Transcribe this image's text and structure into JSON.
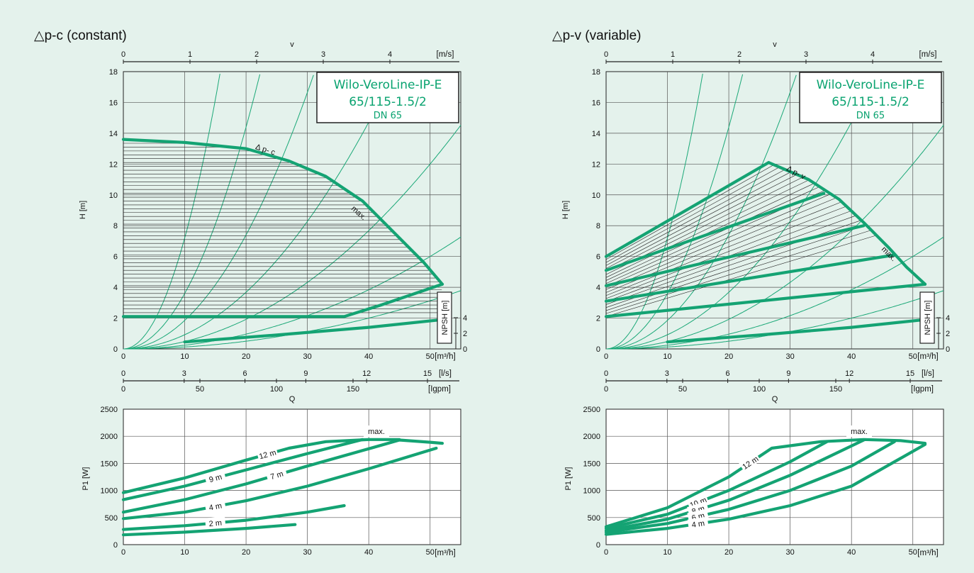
{
  "colors": {
    "background": "#e4f2ec",
    "curve": "#14a373",
    "system": "#1aa877",
    "grid": "#555555",
    "brand": "#0aa370"
  },
  "chart_data": [
    {
      "type": "line",
      "title": "△p-c (constant)",
      "product": [
        "Wilo-VeroLine-IP-E",
        "65/115-1.5/2",
        "DN 65"
      ],
      "top_axis": {
        "label": "v",
        "unit": "[m/s]",
        "ticks": [
          "0",
          "1",
          "2",
          "3",
          "4"
        ]
      },
      "ylabel": "H [m]",
      "ylim": [
        0,
        18
      ],
      "yticks": [
        "0",
        "2",
        "4",
        "6",
        "8",
        "10",
        "12",
        "14",
        "16",
        "18"
      ],
      "xlim": [
        0,
        55
      ],
      "xticks": [
        "0",
        "10",
        "20",
        "30",
        "40",
        "50"
      ],
      "x_unit": "[m³/h]",
      "x_axis_ls": {
        "unit": "[l/s]",
        "ticks": [
          "0",
          "3",
          "6",
          "9",
          "12",
          "15"
        ]
      },
      "x_axis_igpm": {
        "unit": "[Igpm]",
        "ticks": [
          "0",
          "50",
          "100",
          "150"
        ]
      },
      "qlabel": "Q",
      "npsh": {
        "label": "NPSH [m]",
        "ticks": [
          "0",
          "2",
          "4"
        ]
      },
      "curve_labels": [
        "∆ p- c",
        "max."
      ],
      "series": [
        {
          "x": [
            0,
            10,
            20,
            27,
            33,
            39,
            45,
            49,
            52
          ],
          "y": [
            13.6,
            13.4,
            13.0,
            12.2,
            11.2,
            9.6,
            7.2,
            5.6,
            4.2
          ]
        },
        {
          "x": [
            0,
            36,
            42,
            52
          ],
          "y": [
            2.1,
            2.1,
            2.85,
            4.2
          ]
        },
        {
          "x": [
            10,
            25,
            40,
            52
          ],
          "y": [
            0.45,
            0.9,
            1.4,
            1.9
          ]
        }
      ],
      "lower": {
        "ylabel": "P1 [W]",
        "ylim": [
          0,
          2500
        ],
        "yticks": [
          "0",
          "500",
          "1000",
          "1500",
          "2000",
          "2500"
        ],
        "xticks": [
          "0",
          "10",
          "20",
          "30",
          "40",
          "50"
        ],
        "x_unit": "[m³/h]",
        "max_label": "max.",
        "series": [
          {
            "name": "12 m",
            "x": [
              0,
              10,
              20,
              27,
              33,
              40,
              45
            ],
            "y": [
              960,
              1230,
              1560,
              1780,
              1900,
              1940,
              1940
            ]
          },
          {
            "name": "9 m",
            "x": [
              0,
              10,
              20,
              30,
              39
            ],
            "y": [
              830,
              1080,
              1380,
              1680,
              1940
            ]
          },
          {
            "name": "7 m",
            "x": [
              0,
              10,
              20,
              30,
              40,
              45,
              50,
              52
            ],
            "y": [
              600,
              830,
              1120,
              1450,
              1770,
              1930,
              1890,
              1870
            ]
          },
          {
            "name": "4 m",
            "x": [
              0,
              10,
              20,
              30,
              40,
              51
            ],
            "y": [
              480,
              600,
              810,
              1080,
              1400,
              1780
            ]
          },
          {
            "name": "2 m",
            "x": [
              0,
              10,
              20,
              30,
              36
            ],
            "y": [
              280,
              350,
              450,
              600,
              720
            ]
          },
          {
            "name": "",
            "x": [
              0,
              10,
              20,
              28
            ],
            "y": [
              180,
              230,
              300,
              370
            ]
          }
        ]
      }
    },
    {
      "type": "line",
      "title": "△p-v (variable)",
      "product": [
        "Wilo-VeroLine-IP-E",
        "65/115-1.5/2",
        "DN 65"
      ],
      "top_axis": {
        "label": "v",
        "unit": "[m/s]",
        "ticks": [
          "0",
          "1",
          "2",
          "3",
          "4"
        ]
      },
      "ylabel": "H [m]",
      "ylim": [
        0,
        18
      ],
      "yticks": [
        "0",
        "2",
        "4",
        "6",
        "8",
        "10",
        "12",
        "14",
        "16",
        "18"
      ],
      "xlim": [
        0,
        55
      ],
      "xticks": [
        "0",
        "10",
        "20",
        "30",
        "40",
        "50"
      ],
      "x_unit": "[m³/h]",
      "x_axis_ls": {
        "unit": "[l/s]",
        "ticks": [
          "0",
          "3",
          "6",
          "9",
          "12",
          "15"
        ]
      },
      "x_axis_igpm": {
        "unit": "[Igpm]",
        "ticks": [
          "0",
          "50",
          "100",
          "150"
        ]
      },
      "qlabel": "Q",
      "npsh": {
        "label": "NPSH [m]",
        "ticks": [
          "0",
          "2",
          "4"
        ]
      },
      "curve_labels": [
        "∆ p- v",
        "max."
      ],
      "series": [
        {
          "x": [
            26.5,
            33,
            38,
            42,
            46,
            49,
            52
          ],
          "y": [
            12.1,
            11.0,
            9.7,
            8.2,
            6.6,
            5.3,
            4.2
          ]
        },
        {
          "x": [
            0,
            26.5
          ],
          "y": [
            6.0,
            12.1
          ]
        },
        {
          "x": [
            0,
            35.5
          ],
          "y": [
            5.1,
            10.1
          ]
        },
        {
          "x": [
            0,
            42
          ],
          "y": [
            4.1,
            8.0
          ]
        },
        {
          "x": [
            0,
            47
          ],
          "y": [
            3.1,
            6.1
          ]
        },
        {
          "x": [
            0,
            52
          ],
          "y": [
            2.1,
            4.2
          ]
        },
        {
          "x": [
            10,
            25,
            40,
            52
          ],
          "y": [
            0.45,
            0.9,
            1.4,
            1.9
          ]
        }
      ],
      "lower": {
        "ylabel": "P1 [W]",
        "ylim": [
          0,
          2500
        ],
        "yticks": [
          "0",
          "500",
          "1000",
          "1500",
          "2000",
          "2500"
        ],
        "xticks": [
          "0",
          "10",
          "20",
          "30",
          "40",
          "50"
        ],
        "x_unit": "[m³/h]",
        "max_label": "max.",
        "series": [
          {
            "name": "12 m",
            "x": [
              0,
              10,
              20,
              27,
              35,
              42,
              48,
              52
            ],
            "y": [
              330,
              680,
              1250,
              1780,
              1900,
              1940,
              1920,
              1870
            ]
          },
          {
            "name": "10 m",
            "x": [
              0,
              10,
              20,
              30,
              36
            ],
            "y": [
              300,
              560,
              1000,
              1530,
              1900
            ]
          },
          {
            "name": "8 m",
            "x": [
              0,
              10,
              20,
              30,
              42
            ],
            "y": [
              260,
              470,
              820,
              1280,
              1930
            ]
          },
          {
            "name": "6 m",
            "x": [
              0,
              10,
              20,
              30,
              40,
              47
            ],
            "y": [
              230,
              390,
              650,
              1000,
              1450,
              1900
            ]
          },
          {
            "name": "4 m",
            "x": [
              0,
              10,
              20,
              30,
              40,
              52
            ],
            "y": [
              190,
              300,
              470,
              720,
              1080,
              1850
            ]
          }
        ]
      }
    }
  ]
}
